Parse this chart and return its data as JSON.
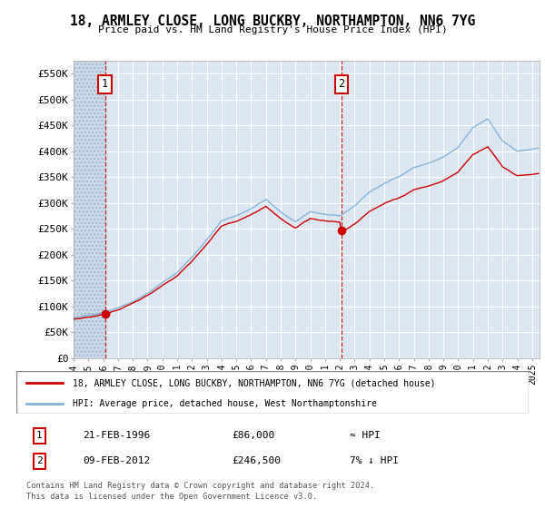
{
  "title": "18, ARMLEY CLOSE, LONG BUCKBY, NORTHAMPTON, NN6 7YG",
  "subtitle": "Price paid vs. HM Land Registry's House Price Index (HPI)",
  "ylim": [
    0,
    575000
  ],
  "yticks": [
    0,
    50000,
    100000,
    150000,
    200000,
    250000,
    300000,
    350000,
    400000,
    450000,
    500000,
    550000
  ],
  "ytick_labels": [
    "£0",
    "£50K",
    "£100K",
    "£150K",
    "£200K",
    "£250K",
    "£300K",
    "£350K",
    "£400K",
    "£450K",
    "£500K",
    "£550K"
  ],
  "xlim_start": 1994.0,
  "xlim_end": 2025.5,
  "background_color": "#ffffff",
  "plot_bg_color": "#dce6f1",
  "grid_color": "#ffffff",
  "sale1_x": 1996.12,
  "sale1_y": 86000,
  "sale2_x": 2012.1,
  "sale2_y": 246500,
  "hpi_line_color": "#7eb0d5",
  "sale_line_color": "#cc0000",
  "vline_color": "#cc0000",
  "legend1_text": "18, ARMLEY CLOSE, LONG BUCKBY, NORTHAMPTON, NN6 7YG (detached house)",
  "legend2_text": "HPI: Average price, detached house, West Northamptonshire",
  "footer1": "Contains HM Land Registry data © Crown copyright and database right 2024.",
  "footer2": "This data is licensed under the Open Government Licence v3.0.",
  "table_row1": [
    "1",
    "21-FEB-1996",
    "£86,000",
    "≈ HPI"
  ],
  "table_row2": [
    "2",
    "09-FEB-2012",
    "£246,500",
    "7% ↓ HPI"
  ]
}
